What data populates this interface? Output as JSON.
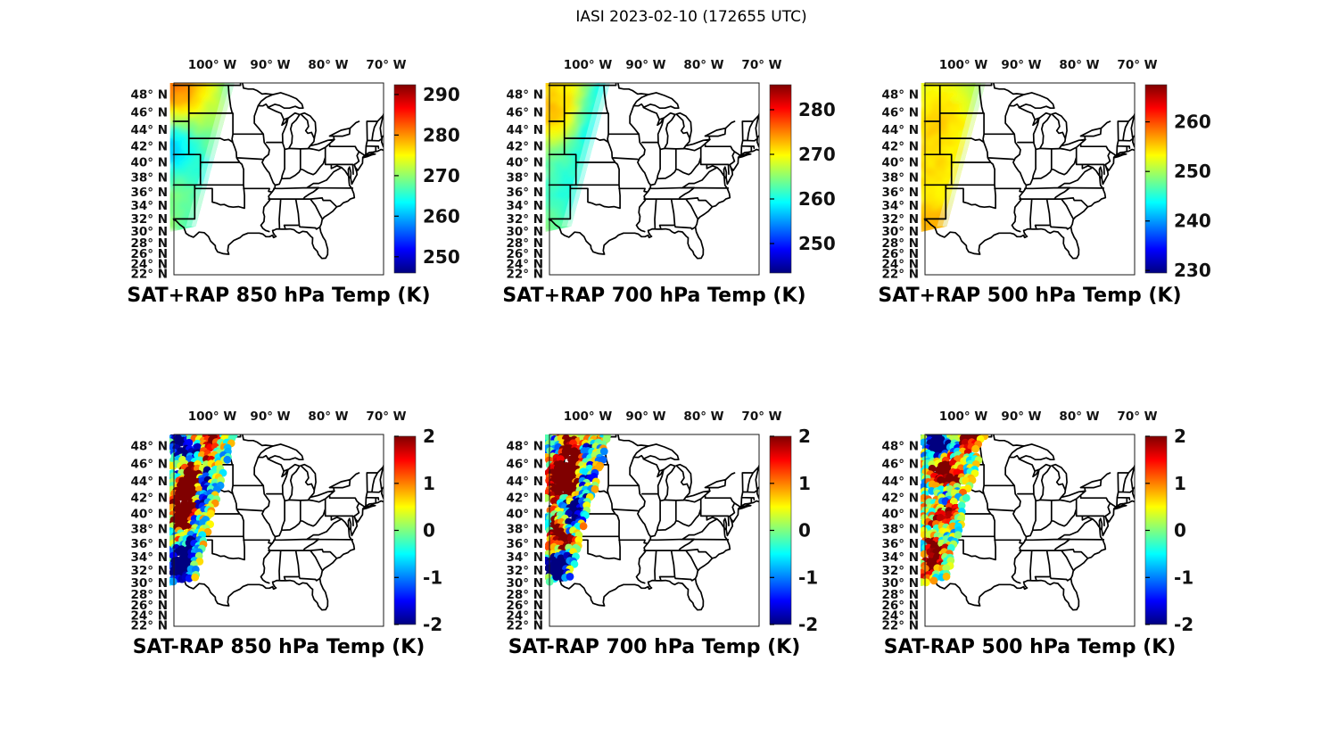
{
  "figure": {
    "title": "IASI 2023-02-10 (172655 UTC)"
  },
  "chart_data": {
    "type": "map",
    "colormap": "jet",
    "map_extent": {
      "lon_min": -106.6,
      "lon_max": -70.4,
      "lat_min": 21.9,
      "lat_max": 49.3
    },
    "lon_ticks": {
      "values": [
        -100,
        -90,
        -80,
        -70
      ],
      "labels": [
        "100° W",
        "90° W",
        "80° W",
        "70° W"
      ]
    },
    "lat_ticks": {
      "values": [
        48,
        46,
        44,
        42,
        40,
        38,
        36,
        34,
        32,
        30,
        28,
        26,
        24,
        22
      ],
      "labels": [
        "48° N",
        "46° N",
        "44° N",
        "42° N",
        "40° N",
        "38° N",
        "36° N",
        "34° N",
        "32° N",
        "30° N",
        "28° N",
        "26° N",
        "24° N",
        "22° N"
      ]
    },
    "swath_polygon_lonlat": [
      [
        -107.3,
        49.5
      ],
      [
        -96.15,
        49.35
      ],
      [
        -102.85,
        30.8
      ],
      [
        -107.3,
        29.9
      ]
    ],
    "panels": [
      {
        "id": "sat-plus-rap-850",
        "title": "SAT+RAP 850 hPa Temp (K)",
        "row": 0,
        "col": 0,
        "kind": "field",
        "units": "K",
        "cbar_range": [
          246.0,
          292.4
        ],
        "cbar_ticks": [
          290,
          280,
          270,
          260,
          250
        ],
        "noise": 0.8,
        "description": "Warm ~280-283K over MT/ND, cool cyan-blue streaks ~258-263K along CO front range, green-yellow 264-272K south",
        "field_points": [
          [
            -104,
            48.5,
            281
          ],
          [
            -100,
            48.8,
            277
          ],
          [
            -97.5,
            48.9,
            266
          ],
          [
            -106,
            47.5,
            282
          ],
          [
            -103,
            47,
            278
          ],
          [
            -100,
            46.5,
            272
          ],
          [
            -105.5,
            45,
            276
          ],
          [
            -102.5,
            44.5,
            272
          ],
          [
            -100.5,
            43.8,
            268
          ],
          [
            -106,
            43,
            262
          ],
          [
            -104.5,
            42.5,
            263
          ],
          [
            -106.3,
            41.5,
            258
          ],
          [
            -103.5,
            41.5,
            266
          ],
          [
            -106.3,
            40.8,
            259
          ],
          [
            -105.8,
            40,
            262
          ],
          [
            -103.8,
            39.5,
            267
          ],
          [
            -106,
            38.5,
            265
          ],
          [
            -104.2,
            38,
            268
          ],
          [
            -102.9,
            38.5,
            262
          ],
          [
            -106,
            36.5,
            270
          ],
          [
            -104.5,
            36,
            268
          ],
          [
            -106.2,
            34.5,
            271
          ],
          [
            -104.8,
            34,
            269
          ],
          [
            -105.9,
            32.8,
            268
          ],
          [
            -104.5,
            32.5,
            264
          ],
          [
            -106.4,
            31.8,
            272
          ]
        ]
      },
      {
        "id": "sat-plus-rap-700",
        "title": "SAT+RAP 700 hPa Temp (K)",
        "row": 0,
        "col": 1,
        "kind": "field",
        "units": "K",
        "cbar_range": [
          243.4,
          285.6
        ],
        "cbar_ticks": [
          280,
          270,
          260,
          250
        ],
        "noise": 0.8,
        "description": "Yellow-orange ~270-275K NW, cyan band ~259-261K along east swath edge, green-cyan south, yellow spot at bottom-left tip",
        "field_points": [
          [
            -104,
            48.6,
            270
          ],
          [
            -101,
            48.8,
            269
          ],
          [
            -97.9,
            48.8,
            259
          ],
          [
            -99,
            46.8,
            260
          ],
          [
            -106,
            47.3,
            272
          ],
          [
            -103,
            47,
            271
          ],
          [
            -105.5,
            44.7,
            275
          ],
          [
            -103.8,
            44.2,
            272
          ],
          [
            -100.6,
            43.9,
            259
          ],
          [
            -106,
            42.3,
            267
          ],
          [
            -104,
            41.6,
            265
          ],
          [
            -101.9,
            41.2,
            259
          ],
          [
            -106,
            40,
            263
          ],
          [
            -104,
            39.3,
            262
          ],
          [
            -102.9,
            38.8,
            260
          ],
          [
            -106,
            38,
            263
          ],
          [
            -104.4,
            37.4,
            261
          ],
          [
            -105.5,
            36,
            262
          ],
          [
            -104.1,
            35,
            260
          ],
          [
            -106,
            34,
            261
          ],
          [
            -104.7,
            33,
            259
          ],
          [
            -106.35,
            31.7,
            270
          ],
          [
            -105.2,
            31.8,
            261
          ]
        ]
      },
      {
        "id": "sat-plus-rap-500",
        "title": "SAT+RAP 500 hPa Temp (K)",
        "row": 0,
        "col": 2,
        "kind": "field",
        "units": "K",
        "cbar_range": [
          229.5,
          267.5
        ],
        "cbar_ticks": [
          260,
          250,
          240,
          230
        ],
        "noise": 0.7,
        "description": "Nearly uniform yellow ~252-256K, slight green near NE swath edge, orange blob ~258K at bottom-left tip",
        "field_points": [
          [
            -104,
            48.6,
            252.5
          ],
          [
            -100,
            48.8,
            252
          ],
          [
            -97.7,
            48.9,
            249.5
          ],
          [
            -106,
            47,
            253
          ],
          [
            -103,
            46.5,
            254
          ],
          [
            -104.5,
            44.8,
            256
          ],
          [
            -102.8,
            44.2,
            255.5
          ],
          [
            -100.6,
            44,
            253
          ],
          [
            -106,
            42.5,
            254
          ],
          [
            -104,
            41.5,
            254.5
          ],
          [
            -101.8,
            41.5,
            253
          ],
          [
            -105.5,
            40,
            255.5
          ],
          [
            -103.5,
            39.3,
            254.5
          ],
          [
            -106,
            38,
            254
          ],
          [
            -104.3,
            37,
            253.5
          ],
          [
            -105.5,
            35.5,
            254
          ],
          [
            -104.2,
            34,
            253.5
          ],
          [
            -106.2,
            32.5,
            254.5
          ],
          [
            -105,
            31.8,
            258
          ]
        ]
      },
      {
        "id": "sat-minus-rap-850",
        "title": "SAT-RAP 850 hPa Temp (K)",
        "row": 1,
        "col": 0,
        "kind": "dots",
        "units": "K",
        "cbar_range": [
          -2,
          2
        ],
        "cbar_ticks": [
          2,
          1,
          0,
          -1,
          -2
        ],
        "seed": 11,
        "noise": 1.0,
        "description": "Saturated dark-red (>+2K) core 38-45N west side, dark-blue band along SE swath edge and over 31-36N, red dots along top edge, blue upper-left",
        "clusters": [
          [
            -100.0,
            48.85,
            0.9,
            2.2
          ],
          [
            -103.5,
            48.85,
            1.0,
            1.2
          ],
          [
            -105.8,
            48.3,
            0.9,
            -2.0
          ],
          [
            -104.5,
            47.6,
            1.0,
            -2.2
          ],
          [
            -102.6,
            47.3,
            0.9,
            -1.2
          ],
          [
            -100.6,
            47.3,
            0.8,
            0.8
          ],
          [
            -99.3,
            47.6,
            0.7,
            -0.6
          ],
          [
            -100.9,
            46.3,
            0.8,
            1.6
          ],
          [
            -105.9,
            46.3,
            0.8,
            0.6
          ],
          [
            -104.3,
            45.6,
            1.0,
            1.2
          ],
          [
            -100.9,
            45.4,
            0.7,
            -2.3
          ],
          [
            -103.6,
            44.2,
            1.2,
            2.6
          ],
          [
            -105.9,
            44.6,
            0.8,
            -1.6
          ],
          [
            -101.5,
            43.4,
            0.7,
            -2.3
          ],
          [
            -104.9,
            42.2,
            1.3,
            2.6
          ],
          [
            -102.3,
            41.4,
            0.7,
            -2.3
          ],
          [
            -104.0,
            40.2,
            1.2,
            2.6
          ],
          [
            -103.0,
            39.3,
            0.7,
            -2.3
          ],
          [
            -105.5,
            38.9,
            1.0,
            2.2
          ],
          [
            -104.1,
            37.7,
            0.7,
            1.4
          ],
          [
            -103.7,
            36.9,
            0.7,
            -2.3
          ],
          [
            -105.9,
            37.2,
            0.8,
            -1.2
          ],
          [
            -105.4,
            36.1,
            0.7,
            1.8
          ],
          [
            -104.4,
            34.9,
            0.8,
            -2.4
          ],
          [
            -105.7,
            34.3,
            0.9,
            -2.0
          ],
          [
            -104.9,
            32.9,
            0.9,
            -2.4
          ],
          [
            -106.2,
            32.2,
            0.8,
            -2.2
          ],
          [
            -105.5,
            31.4,
            0.8,
            -2.4
          ]
        ]
      },
      {
        "id": "sat-minus-rap-700",
        "title": "SAT-RAP 700 hPa Temp (K)",
        "row": 1,
        "col": 1,
        "kind": "dots",
        "units": "K",
        "cbar_range": [
          -2,
          2
        ],
        "cbar_ticks": [
          2,
          1,
          0,
          -1,
          -2
        ],
        "seed": 22,
        "noise": 1.2,
        "description": "Mostly warm red/orange 42-47N with cyan pocket ~44.8N, mixed cyan/orange 38-42N, warm 36-38N, blue south of 35N",
        "clusters": [
          [
            -104,
            48.7,
            1.0,
            1.5
          ],
          [
            -100.5,
            48.8,
            0.8,
            1.0
          ],
          [
            -98.5,
            48.9,
            0.6,
            0.6
          ],
          [
            -105.5,
            47.6,
            0.8,
            -1.8
          ],
          [
            -102.5,
            47.2,
            1.0,
            1.8
          ],
          [
            -99.8,
            47.5,
            0.7,
            -1.5
          ],
          [
            -104.5,
            45.8,
            1.2,
            2.2
          ],
          [
            -102,
            45.5,
            1.0,
            1.6
          ],
          [
            -100.3,
            44.8,
            0.9,
            -1.3
          ],
          [
            -105,
            44,
            1.2,
            2.4
          ],
          [
            -103,
            43.2,
            1.0,
            1.8
          ],
          [
            -101,
            42.5,
            0.8,
            -0.9
          ],
          [
            -105.5,
            41.5,
            1.0,
            0.6
          ],
          [
            -103.5,
            41,
            1.0,
            -1.2
          ],
          [
            -101.8,
            40.5,
            0.8,
            -1.8
          ],
          [
            -105,
            39.5,
            0.9,
            0.9
          ],
          [
            -103,
            38.8,
            0.9,
            -1.5
          ],
          [
            -105.5,
            37.5,
            0.9,
            1.6
          ],
          [
            -104,
            36.5,
            1.0,
            1.8
          ],
          [
            -105,
            35,
            1.0,
            0.6
          ],
          [
            -103.8,
            34,
            0.8,
            -1.8
          ],
          [
            -105.5,
            33,
            1.0,
            -2.0
          ],
          [
            -105.6,
            32.3,
            0.9,
            -2.2
          ],
          [
            -104.8,
            31.8,
            0.9,
            -2.2
          ]
        ]
      },
      {
        "id": "sat-minus-rap-500",
        "title": "SAT-RAP 500 hPa Temp (K)",
        "row": 1,
        "col": 2,
        "kind": "dots",
        "units": "K",
        "cbar_range": [
          -2,
          2
        ],
        "cbar_ticks": [
          2,
          1,
          0,
          -1,
          -2
        ],
        "seed": 33,
        "noise": 1.1,
        "description": "Dark-blue cluster top-left 47-49N, dark-red cluster 44-46N, red along swath edge ~40-41N, warm orange/red 34-38N, yellow-orange at bottom",
        "clusters": [
          [
            -105,
            48.6,
            1.0,
            -2.4
          ],
          [
            -103.6,
            48.0,
            0.9,
            -2.0
          ],
          [
            -99.6,
            48.6,
            0.8,
            1.8
          ],
          [
            -97.8,
            48.85,
            0.5,
            2.0
          ],
          [
            -101.5,
            47.8,
            0.7,
            -0.8
          ],
          [
            -104.8,
            46.8,
            0.8,
            -0.6
          ],
          [
            -102.3,
            46.3,
            0.8,
            0.8
          ],
          [
            -103.3,
            45.0,
            1.1,
            2.5
          ],
          [
            -105.6,
            44.8,
            0.8,
            1.2
          ],
          [
            -101.3,
            44.3,
            0.7,
            1.2
          ],
          [
            -104.8,
            43.2,
            0.9,
            0.2
          ],
          [
            -106.3,
            43.5,
            0.8,
            -0.7
          ],
          [
            -102.6,
            42.6,
            0.8,
            -0.7
          ],
          [
            -105.7,
            41.6,
            0.8,
            0.6
          ],
          [
            -103.8,
            41.0,
            0.8,
            -0.5
          ],
          [
            -101.9,
            40.4,
            0.7,
            2.2
          ],
          [
            -103.6,
            39.4,
            0.8,
            1.6
          ],
          [
            -105.6,
            38.6,
            0.9,
            0.6
          ],
          [
            -104.2,
            37.4,
            0.8,
            -0.9
          ],
          [
            -105.3,
            36.3,
            0.8,
            1.4
          ],
          [
            -104.4,
            35.0,
            0.9,
            1.9
          ],
          [
            -105.6,
            33.9,
            0.9,
            0.9
          ],
          [
            -104.9,
            32.7,
            0.8,
            1.3
          ],
          [
            -106.1,
            31.7,
            0.7,
            1.6
          ]
        ]
      }
    ]
  }
}
